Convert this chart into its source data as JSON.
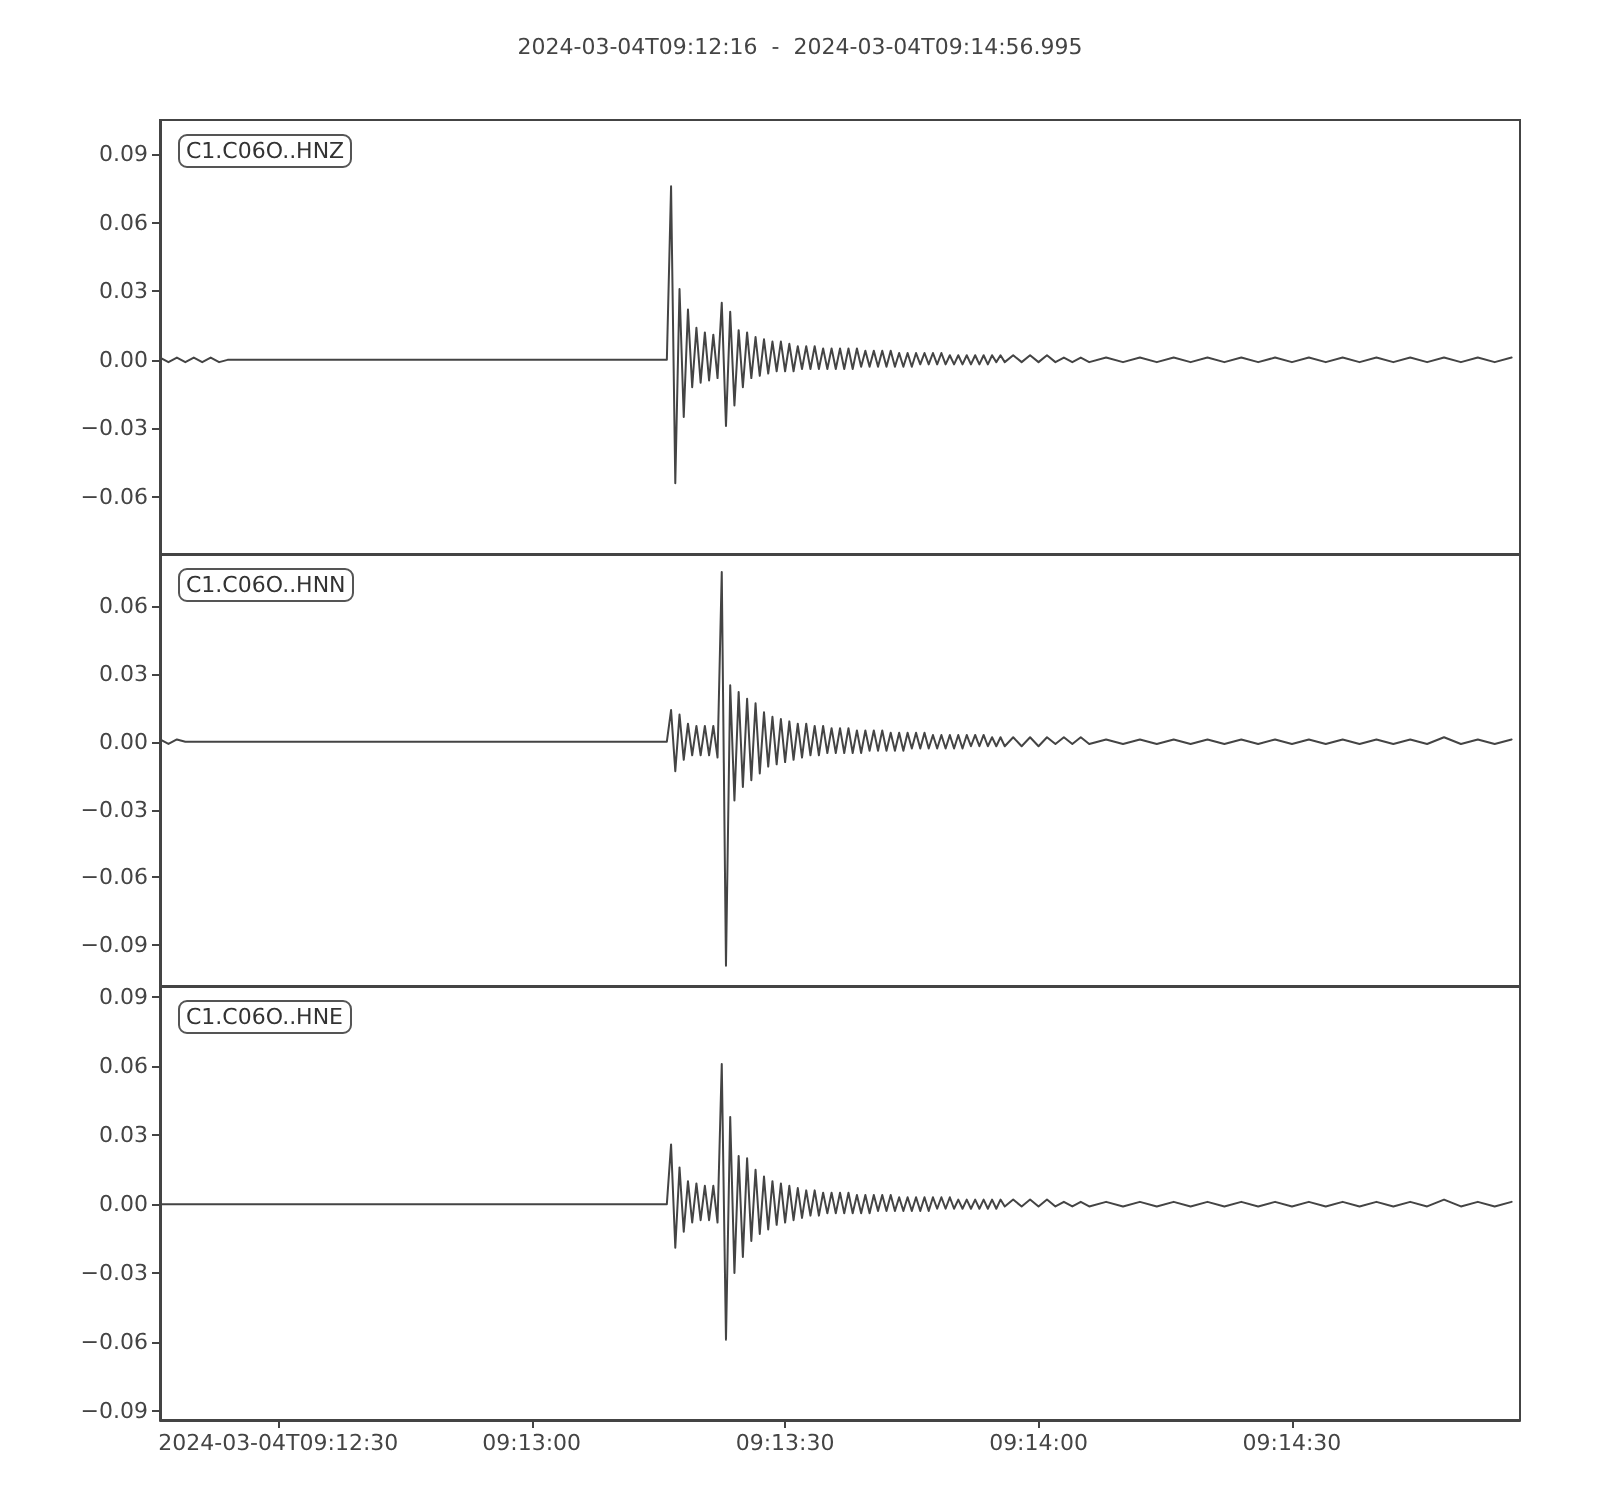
{
  "chart_data": [
    {
      "type": "line",
      "title": "2024-03-04T09:12:16  -  2024-03-04T09:14:56.995",
      "annotations": [
        "C1.C06O..HNZ"
      ],
      "color": "#444444",
      "tick_labels": "y",
      "xlim": [
        "2024-03-04T09:12:16",
        "2024-03-04T09:14:56.995"
      ],
      "ylim": [
        -0.085,
        0.105
      ],
      "yticks": [
        {
          "value": -0.06,
          "label": "−0.06"
        },
        {
          "value": -0.03,
          "label": "−0.03"
        },
        {
          "value": 0,
          "label": "0.00"
        },
        {
          "value": 0.03,
          "label": "0.03"
        },
        {
          "value": 0.06,
          "label": "0.06"
        },
        {
          "value": 0.09,
          "label": "0.09"
        }
      ],
      "x": [
        "2024-03-04T09:12:16",
        "2024-03-04T09:12:17",
        "2024-03-04T09:12:18",
        "2024-03-04T09:12:19",
        "2024-03-04T09:12:20",
        "2024-03-04T09:12:21",
        "2024-03-04T09:12:22",
        "2024-03-04T09:12:23",
        "2024-03-04T09:12:24",
        "2024-03-04T09:12:31",
        "2024-03-04T09:12:41",
        "2024-03-04T09:12:51",
        "2024-03-04T09:13:01",
        "2024-03-04T09:13:11",
        "2024-03-04T09:13:16",
        "2024-03-04T09:13:16.5",
        "2024-03-04T09:13:17",
        "2024-03-04T09:13:17.5",
        "2024-03-04T09:13:18",
        "2024-03-04T09:13:18.5",
        "2024-03-04T09:13:19",
        "2024-03-04T09:13:19.5",
        "2024-03-04T09:13:20",
        "2024-03-04T09:13:20.5",
        "2024-03-04T09:13:21",
        "2024-03-04T09:13:21.5",
        "2024-03-04T09:13:22",
        "2024-03-04T09:13:22.5",
        "2024-03-04T09:13:23",
        "2024-03-04T09:13:23.5",
        "2024-03-04T09:13:24",
        "2024-03-04T09:13:24.5",
        "2024-03-04T09:13:25",
        "2024-03-04T09:13:25.5",
        "2024-03-04T09:13:26",
        "2024-03-04T09:13:26.5",
        "2024-03-04T09:13:27",
        "2024-03-04T09:13:27.5",
        "2024-03-04T09:13:28",
        "2024-03-04T09:13:28.5",
        "2024-03-04T09:13:29",
        "2024-03-04T09:13:29.5",
        "2024-03-04T09:13:30",
        "2024-03-04T09:13:30.5",
        "2024-03-04T09:13:31",
        "2024-03-04T09:13:31.5",
        "2024-03-04T09:13:32",
        "2024-03-04T09:13:32.5",
        "2024-03-04T09:13:33",
        "2024-03-04T09:13:33.5",
        "2024-03-04T09:13:34",
        "2024-03-04T09:13:34.5",
        "2024-03-04T09:13:35",
        "2024-03-04T09:13:35.5",
        "2024-03-04T09:13:36",
        "2024-03-04T09:13:36.5",
        "2024-03-04T09:13:37",
        "2024-03-04T09:13:37.5",
        "2024-03-04T09:13:38",
        "2024-03-04T09:13:38.5",
        "2024-03-04T09:13:39",
        "2024-03-04T09:13:39.5",
        "2024-03-04T09:13:40",
        "2024-03-04T09:13:40.5",
        "2024-03-04T09:13:41",
        "2024-03-04T09:13:41.5",
        "2024-03-04T09:13:42",
        "2024-03-04T09:13:42.5",
        "2024-03-04T09:13:43",
        "2024-03-04T09:13:43.5",
        "2024-03-04T09:13:44",
        "2024-03-04T09:13:44.5",
        "2024-03-04T09:13:45",
        "2024-03-04T09:13:45.5",
        "2024-03-04T09:13:46",
        "2024-03-04T09:13:46.5",
        "2024-03-04T09:13:47",
        "2024-03-04T09:13:47.5",
        "2024-03-04T09:13:48",
        "2024-03-04T09:13:48.5",
        "2024-03-04T09:13:49",
        "2024-03-04T09:13:49.5",
        "2024-03-04T09:13:50",
        "2024-03-04T09:13:50.5",
        "2024-03-04T09:13:51",
        "2024-03-04T09:13:51.5",
        "2024-03-04T09:13:52",
        "2024-03-04T09:13:52.5",
        "2024-03-04T09:13:53",
        "2024-03-04T09:13:53.5",
        "2024-03-04T09:13:54",
        "2024-03-04T09:13:54.5",
        "2024-03-04T09:13:55",
        "2024-03-04T09:13:55.5",
        "2024-03-04T09:13:56",
        "2024-03-04T09:13:57",
        "2024-03-04T09:13:58",
        "2024-03-04T09:13:59",
        "2024-03-04T09:14:00",
        "2024-03-04T09:14:01",
        "2024-03-04T09:14:02",
        "2024-03-04T09:14:03",
        "2024-03-04T09:14:04",
        "2024-03-04T09:14:05",
        "2024-03-04T09:14:06",
        "2024-03-04T09:14:08",
        "2024-03-04T09:14:10",
        "2024-03-04T09:14:12",
        "2024-03-04T09:14:14",
        "2024-03-04T09:14:16",
        "2024-03-04T09:14:18",
        "2024-03-04T09:14:20",
        "2024-03-04T09:14:22",
        "2024-03-04T09:14:24",
        "2024-03-04T09:14:26",
        "2024-03-04T09:14:28",
        "2024-03-04T09:14:30",
        "2024-03-04T09:14:32",
        "2024-03-04T09:14:34",
        "2024-03-04T09:14:36",
        "2024-03-04T09:14:38",
        "2024-03-04T09:14:40",
        "2024-03-04T09:14:42",
        "2024-03-04T09:14:44",
        "2024-03-04T09:14:46",
        "2024-03-04T09:14:48",
        "2024-03-04T09:14:50",
        "2024-03-04T09:14:52",
        "2024-03-04T09:14:54",
        "2024-03-04T09:14:56"
      ],
      "values": [
        0.001,
        -0.001,
        0.001,
        -0.001,
        0.001,
        -0.001,
        0.001,
        -0.001,
        0,
        0,
        0,
        0,
        0,
        0,
        0,
        0.076,
        -0.054,
        0.031,
        -0.025,
        0.022,
        -0.012,
        0.014,
        -0.01,
        0.012,
        -0.009,
        0.011,
        -0.008,
        0.025,
        -0.029,
        0.021,
        -0.02,
        0.013,
        -0.012,
        0.012,
        -0.008,
        0.01,
        -0.007,
        0.009,
        -0.006,
        0.008,
        -0.005,
        0.008,
        -0.005,
        0.007,
        -0.005,
        0.006,
        -0.004,
        0.006,
        -0.004,
        0.006,
        -0.004,
        0.005,
        -0.004,
        0.005,
        -0.004,
        0.005,
        -0.004,
        0.005,
        -0.004,
        0.005,
        -0.003,
        0.004,
        -0.003,
        0.004,
        -0.003,
        0.004,
        -0.003,
        0.004,
        -0.003,
        0.003,
        -0.003,
        0.003,
        -0.003,
        0.003,
        -0.002,
        0.003,
        -0.002,
        0.003,
        -0.002,
        0.003,
        -0.002,
        0.002,
        -0.002,
        0.002,
        -0.002,
        0.002,
        -0.002,
        0.002,
        -0.002,
        0.002,
        -0.002,
        0.002,
        -0.001,
        0.002,
        -0.001,
        0.002,
        -0.001,
        0.002,
        -0.001,
        0.002,
        -0.001,
        0.001,
        -0.001,
        0.001,
        -0.001,
        0.001,
        -0.001,
        0.001,
        -0.001,
        0.001,
        -0.001,
        0.001,
        -0.001,
        0.001,
        -0.001,
        0.001,
        -0.001,
        0.001,
        -0.001,
        0.001,
        -0.001,
        0.001,
        -0.001,
        0.001,
        -0.001,
        0.001,
        -0.001,
        0.001,
        -0.001,
        0.001
      ]
    },
    {
      "type": "line",
      "annotations": [
        "C1.C06O..HNN"
      ],
      "color": "#444444",
      "tick_labels": "y",
      "xlim": [
        "2024-03-04T09:12:16",
        "2024-03-04T09:14:56.995"
      ],
      "ylim": [
        -0.108,
        0.083
      ],
      "yticks": [
        {
          "value": -0.09,
          "label": "−0.09"
        },
        {
          "value": -0.06,
          "label": "−0.06"
        },
        {
          "value": -0.03,
          "label": "−0.03"
        },
        {
          "value": 0,
          "label": "0.00"
        },
        {
          "value": 0.03,
          "label": "0.03"
        },
        {
          "value": 0.06,
          "label": "0.06"
        }
      ],
      "x": [
        "2024-03-04T09:12:16",
        "2024-03-04T09:12:17",
        "2024-03-04T09:12:18",
        "2024-03-04T09:12:19",
        "2024-03-04T09:12:20",
        "2024-03-04T09:12:21",
        "2024-03-04T09:12:22",
        "2024-03-04T09:12:23",
        "2024-03-04T09:12:24",
        "2024-03-04T09:12:31",
        "2024-03-04T09:12:41",
        "2024-03-04T09:12:51",
        "2024-03-04T09:13:01",
        "2024-03-04T09:13:11",
        "2024-03-04T09:13:16",
        "2024-03-04T09:13:16.5",
        "2024-03-04T09:13:17",
        "2024-03-04T09:13:17.5",
        "2024-03-04T09:13:18",
        "2024-03-04T09:13:18.5",
        "2024-03-04T09:13:19",
        "2024-03-04T09:13:19.5",
        "2024-03-04T09:13:20",
        "2024-03-04T09:13:20.5",
        "2024-03-04T09:13:21",
        "2024-03-04T09:13:21.5",
        "2024-03-04T09:13:22",
        "2024-03-04T09:13:22.5",
        "2024-03-04T09:13:23",
        "2024-03-04T09:13:23.5",
        "2024-03-04T09:13:24",
        "2024-03-04T09:13:24.5",
        "2024-03-04T09:13:25",
        "2024-03-04T09:13:25.5",
        "2024-03-04T09:13:26",
        "2024-03-04T09:13:26.5",
        "2024-03-04T09:13:27",
        "2024-03-04T09:13:27.5",
        "2024-03-04T09:13:28",
        "2024-03-04T09:13:28.5",
        "2024-03-04T09:13:29",
        "2024-03-04T09:13:29.5",
        "2024-03-04T09:13:30",
        "2024-03-04T09:13:30.5",
        "2024-03-04T09:13:31",
        "2024-03-04T09:13:31.5",
        "2024-03-04T09:13:32",
        "2024-03-04T09:13:32.5",
        "2024-03-04T09:13:33",
        "2024-03-04T09:13:33.5",
        "2024-03-04T09:13:34",
        "2024-03-04T09:13:34.5",
        "2024-03-04T09:13:35",
        "2024-03-04T09:13:35.5",
        "2024-03-04T09:13:36",
        "2024-03-04T09:13:36.5",
        "2024-03-04T09:13:37",
        "2024-03-04T09:13:37.5",
        "2024-03-04T09:13:38",
        "2024-03-04T09:13:38.5",
        "2024-03-04T09:13:39",
        "2024-03-04T09:13:39.5",
        "2024-03-04T09:13:40",
        "2024-03-04T09:13:40.5",
        "2024-03-04T09:13:41",
        "2024-03-04T09:13:41.5",
        "2024-03-04T09:13:42",
        "2024-03-04T09:13:42.5",
        "2024-03-04T09:13:43",
        "2024-03-04T09:13:43.5",
        "2024-03-04T09:13:44",
        "2024-03-04T09:13:44.5",
        "2024-03-04T09:13:45",
        "2024-03-04T09:13:45.5",
        "2024-03-04T09:13:46",
        "2024-03-04T09:13:46.5",
        "2024-03-04T09:13:47",
        "2024-03-04T09:13:47.5",
        "2024-03-04T09:13:48",
        "2024-03-04T09:13:48.5",
        "2024-03-04T09:13:49",
        "2024-03-04T09:13:49.5",
        "2024-03-04T09:13:50",
        "2024-03-04T09:13:50.5",
        "2024-03-04T09:13:51",
        "2024-03-04T09:13:51.5",
        "2024-03-04T09:13:52",
        "2024-03-04T09:13:52.5",
        "2024-03-04T09:13:53",
        "2024-03-04T09:13:53.5",
        "2024-03-04T09:13:54",
        "2024-03-04T09:13:54.5",
        "2024-03-04T09:13:55",
        "2024-03-04T09:13:55.5",
        "2024-03-04T09:13:56",
        "2024-03-04T09:13:57",
        "2024-03-04T09:13:58",
        "2024-03-04T09:13:59",
        "2024-03-04T09:14:00",
        "2024-03-04T09:14:01",
        "2024-03-04T09:14:02",
        "2024-03-04T09:14:03",
        "2024-03-04T09:14:04",
        "2024-03-04T09:14:05",
        "2024-03-04T09:14:06",
        "2024-03-04T09:14:08",
        "2024-03-04T09:14:10",
        "2024-03-04T09:14:12",
        "2024-03-04T09:14:14",
        "2024-03-04T09:14:16",
        "2024-03-04T09:14:18",
        "2024-03-04T09:14:20",
        "2024-03-04T09:14:22",
        "2024-03-04T09:14:24",
        "2024-03-04T09:14:26",
        "2024-03-04T09:14:28",
        "2024-03-04T09:14:30",
        "2024-03-04T09:14:32",
        "2024-03-04T09:14:34",
        "2024-03-04T09:14:36",
        "2024-03-04T09:14:38",
        "2024-03-04T09:14:40",
        "2024-03-04T09:14:42",
        "2024-03-04T09:14:44",
        "2024-03-04T09:14:46",
        "2024-03-04T09:14:48",
        "2024-03-04T09:14:50",
        "2024-03-04T09:14:52",
        "2024-03-04T09:14:54",
        "2024-03-04T09:14:56"
      ],
      "values": [
        0.001,
        -0.001,
        0.001,
        0,
        0,
        0,
        0,
        0,
        0,
        0,
        0,
        0,
        0,
        0,
        0,
        0.014,
        -0.013,
        0.012,
        -0.008,
        0.008,
        -0.006,
        0.007,
        -0.006,
        0.007,
        -0.006,
        0.007,
        -0.007,
        0.075,
        -0.099,
        0.025,
        -0.026,
        0.022,
        -0.02,
        0.019,
        -0.017,
        0.017,
        -0.014,
        0.013,
        -0.011,
        0.011,
        -0.01,
        0.01,
        -0.009,
        0.009,
        -0.008,
        0.008,
        -0.007,
        0.008,
        -0.006,
        0.007,
        -0.006,
        0.007,
        -0.005,
        0.006,
        -0.005,
        0.006,
        -0.005,
        0.006,
        -0.005,
        0.005,
        -0.005,
        0.005,
        -0.004,
        0.005,
        -0.004,
        0.005,
        -0.004,
        0.004,
        -0.004,
        0.004,
        -0.004,
        0.004,
        -0.003,
        0.004,
        -0.003,
        0.004,
        -0.003,
        0.003,
        -0.003,
        0.003,
        -0.003,
        0.003,
        -0.003,
        0.003,
        -0.003,
        0.003,
        -0.002,
        0.003,
        -0.002,
        0.003,
        -0.002,
        0.002,
        -0.002,
        0.002,
        -0.002,
        0.002,
        -0.002,
        0.002,
        -0.002,
        0.002,
        -0.001,
        0.002,
        -0.001,
        0.002,
        -0.001,
        0.001,
        -0.001,
        0.001,
        -0.001,
        0.001,
        -0.001,
        0.001,
        -0.001,
        0.001,
        -0.001,
        0.001,
        -0.001,
        0.001,
        -0.001,
        0.001,
        -0.001,
        0.001,
        -0.001,
        0.001,
        -0.001,
        0.002,
        -0.001,
        0.001,
        -0.001,
        0.001
      ]
    },
    {
      "type": "line",
      "annotations": [
        "C1.C06O..HNE"
      ],
      "color": "#444444",
      "xlim": [
        "2024-03-04T09:12:16",
        "2024-03-04T09:14:56.995"
      ],
      "xticks": [
        {
          "value": "2024-03-04T09:12:30",
          "label": "2024-03-04T09:12:30"
        },
        {
          "value": "2024-03-04T09:13:00",
          "label": "09:13:00"
        },
        {
          "value": "2024-03-04T09:13:30",
          "label": "09:13:30"
        },
        {
          "value": "2024-03-04T09:14:00",
          "label": "09:14:00"
        },
        {
          "value": "2024-03-04T09:14:30",
          "label": "09:14:30"
        }
      ],
      "ylim": [
        -0.094,
        0.095
      ],
      "yticks": [
        {
          "value": -0.09,
          "label": "−0.09"
        },
        {
          "value": -0.06,
          "label": "−0.06"
        },
        {
          "value": -0.03,
          "label": "−0.03"
        },
        {
          "value": 0,
          "label": "0.00"
        },
        {
          "value": 0.03,
          "label": "0.03"
        },
        {
          "value": 0.06,
          "label": "0.06"
        },
        {
          "value": 0.09,
          "label": "0.09"
        }
      ],
      "x": [
        "2024-03-04T09:12:16",
        "2024-03-04T09:12:17",
        "2024-03-04T09:12:18",
        "2024-03-04T09:12:19",
        "2024-03-04T09:12:20",
        "2024-03-04T09:12:21",
        "2024-03-04T09:12:22",
        "2024-03-04T09:12:23",
        "2024-03-04T09:12:24",
        "2024-03-04T09:12:31",
        "2024-03-04T09:12:41",
        "2024-03-04T09:12:51",
        "2024-03-04T09:13:01",
        "2024-03-04T09:13:11",
        "2024-03-04T09:13:16",
        "2024-03-04T09:13:16.5",
        "2024-03-04T09:13:17",
        "2024-03-04T09:13:17.5",
        "2024-03-04T09:13:18",
        "2024-03-04T09:13:18.5",
        "2024-03-04T09:13:19",
        "2024-03-04T09:13:19.5",
        "2024-03-04T09:13:20",
        "2024-03-04T09:13:20.5",
        "2024-03-04T09:13:21",
        "2024-03-04T09:13:21.5",
        "2024-03-04T09:13:22",
        "2024-03-04T09:13:22.5",
        "2024-03-04T09:13:23",
        "2024-03-04T09:13:23.5",
        "2024-03-04T09:13:24",
        "2024-03-04T09:13:24.5",
        "2024-03-04T09:13:25",
        "2024-03-04T09:13:25.5",
        "2024-03-04T09:13:26",
        "2024-03-04T09:13:26.5",
        "2024-03-04T09:13:27",
        "2024-03-04T09:13:27.5",
        "2024-03-04T09:13:28",
        "2024-03-04T09:13:28.5",
        "2024-03-04T09:13:29",
        "2024-03-04T09:13:29.5",
        "2024-03-04T09:13:30",
        "2024-03-04T09:13:30.5",
        "2024-03-04T09:13:31",
        "2024-03-04T09:13:31.5",
        "2024-03-04T09:13:32",
        "2024-03-04T09:13:32.5",
        "2024-03-04T09:13:33",
        "2024-03-04T09:13:33.5",
        "2024-03-04T09:13:34",
        "2024-03-04T09:13:34.5",
        "2024-03-04T09:13:35",
        "2024-03-04T09:13:35.5",
        "2024-03-04T09:13:36",
        "2024-03-04T09:13:36.5",
        "2024-03-04T09:13:37",
        "2024-03-04T09:13:37.5",
        "2024-03-04T09:13:38",
        "2024-03-04T09:13:38.5",
        "2024-03-04T09:13:39",
        "2024-03-04T09:13:39.5",
        "2024-03-04T09:13:40",
        "2024-03-04T09:13:40.5",
        "2024-03-04T09:13:41",
        "2024-03-04T09:13:41.5",
        "2024-03-04T09:13:42",
        "2024-03-04T09:13:42.5",
        "2024-03-04T09:13:43",
        "2024-03-04T09:13:43.5",
        "2024-03-04T09:13:44",
        "2024-03-04T09:13:44.5",
        "2024-03-04T09:13:45",
        "2024-03-04T09:13:45.5",
        "2024-03-04T09:13:46",
        "2024-03-04T09:13:46.5",
        "2024-03-04T09:13:47",
        "2024-03-04T09:13:47.5",
        "2024-03-04T09:13:48",
        "2024-03-04T09:13:48.5",
        "2024-03-04T09:13:49",
        "2024-03-04T09:13:49.5",
        "2024-03-04T09:13:50",
        "2024-03-04T09:13:50.5",
        "2024-03-04T09:13:51",
        "2024-03-04T09:13:51.5",
        "2024-03-04T09:13:52",
        "2024-03-04T09:13:52.5",
        "2024-03-04T09:13:53",
        "2024-03-04T09:13:53.5",
        "2024-03-04T09:13:54",
        "2024-03-04T09:13:54.5",
        "2024-03-04T09:13:55",
        "2024-03-04T09:13:55.5",
        "2024-03-04T09:13:56",
        "2024-03-04T09:13:57",
        "2024-03-04T09:13:58",
        "2024-03-04T09:13:59",
        "2024-03-04T09:14:00",
        "2024-03-04T09:14:01",
        "2024-03-04T09:14:02",
        "2024-03-04T09:14:03",
        "2024-03-04T09:14:04",
        "2024-03-04T09:14:05",
        "2024-03-04T09:14:06",
        "2024-03-04T09:14:08",
        "2024-03-04T09:14:10",
        "2024-03-04T09:14:12",
        "2024-03-04T09:14:14",
        "2024-03-04T09:14:16",
        "2024-03-04T09:14:18",
        "2024-03-04T09:14:20",
        "2024-03-04T09:14:22",
        "2024-03-04T09:14:24",
        "2024-03-04T09:14:26",
        "2024-03-04T09:14:28",
        "2024-03-04T09:14:30",
        "2024-03-04T09:14:32",
        "2024-03-04T09:14:34",
        "2024-03-04T09:14:36",
        "2024-03-04T09:14:38",
        "2024-03-04T09:14:40",
        "2024-03-04T09:14:42",
        "2024-03-04T09:14:44",
        "2024-03-04T09:14:46",
        "2024-03-04T09:14:48",
        "2024-03-04T09:14:50",
        "2024-03-04T09:14:52",
        "2024-03-04T09:14:54",
        "2024-03-04T09:14:56"
      ],
      "values": [
        0,
        0,
        0,
        0,
        0,
        0,
        0,
        0,
        0,
        0,
        0,
        0,
        0,
        0,
        0,
        0.026,
        -0.019,
        0.016,
        -0.012,
        0.01,
        -0.008,
        0.009,
        -0.007,
        0.008,
        -0.007,
        0.008,
        -0.008,
        0.061,
        -0.059,
        0.038,
        -0.03,
        0.021,
        -0.023,
        0.02,
        -0.016,
        0.015,
        -0.013,
        0.012,
        -0.011,
        0.01,
        -0.009,
        0.009,
        -0.008,
        0.008,
        -0.007,
        0.007,
        -0.006,
        0.006,
        -0.005,
        0.006,
        -0.005,
        0.005,
        -0.004,
        0.005,
        -0.004,
        0.005,
        -0.004,
        0.005,
        -0.004,
        0.004,
        -0.004,
        0.004,
        -0.004,
        0.004,
        -0.003,
        0.004,
        -0.003,
        0.004,
        -0.003,
        0.003,
        -0.003,
        0.003,
        -0.003,
        0.003,
        -0.003,
        0.003,
        -0.003,
        0.003,
        -0.002,
        0.003,
        -0.002,
        0.003,
        -0.002,
        0.002,
        -0.002,
        0.002,
        -0.002,
        0.002,
        -0.002,
        0.002,
        -0.002,
        0.002,
        -0.002,
        0.002,
        -0.001,
        0.002,
        -0.001,
        0.002,
        -0.001,
        0.002,
        -0.001,
        0.001,
        -0.001,
        0.001,
        -0.001,
        0.001,
        -0.001,
        0.001,
        -0.001,
        0.001,
        -0.001,
        0.001,
        -0.001,
        0.001,
        -0.001,
        0.001,
        -0.001,
        0.001,
        -0.001,
        0.001,
        -0.001,
        0.001,
        -0.001,
        0.001,
        -0.001,
        0.002,
        -0.001,
        0.001,
        -0.001,
        0.001
      ]
    }
  ]
}
